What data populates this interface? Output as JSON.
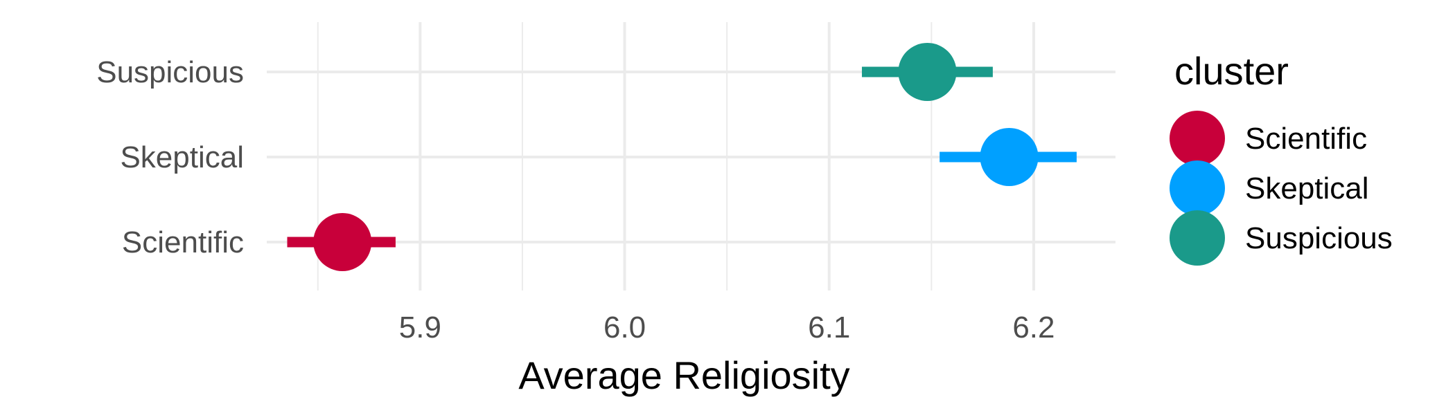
{
  "chart_data": {
    "type": "scatter",
    "subtype": "point-range",
    "xlabel": "Average Religiosity",
    "ylabel": "",
    "xlim": [
      5.825,
      6.24
    ],
    "x_ticks": [
      5.9,
      6.0,
      6.1,
      6.2
    ],
    "x_tick_labels": [
      "5.9",
      "6.0",
      "6.1",
      "6.2"
    ],
    "categories": [
      "Scientific",
      "Skeptical",
      "Suspicious"
    ],
    "series": [
      {
        "name": "Scientific",
        "color": "#C8003A",
        "value": 5.862,
        "lower": 5.835,
        "upper": 5.888
      },
      {
        "name": "Skeptical",
        "color": "#00A0FF",
        "value": 6.188,
        "lower": 6.154,
        "upper": 6.221
      },
      {
        "name": "Suspicious",
        "color": "#1A9A8A",
        "value": 6.148,
        "lower": 6.116,
        "upper": 6.18
      }
    ],
    "legend": {
      "title": "cluster",
      "position": "right",
      "entries": [
        "Scientific",
        "Skeptical",
        "Suspicious"
      ]
    },
    "grid": true,
    "theme": "minimal"
  }
}
